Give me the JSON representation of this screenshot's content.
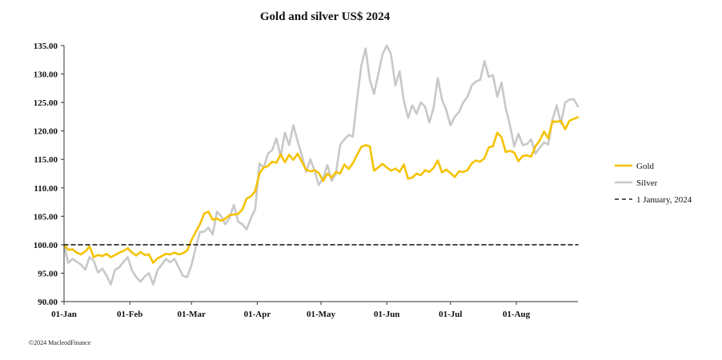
{
  "chart_data": {
    "type": "line",
    "title": "Gold and silver  US$ 2024",
    "ylim": [
      90,
      135
    ],
    "yticks": [
      "90.00",
      "95.00",
      "100.00",
      "105.00",
      "110.00",
      "115.00",
      "120.00",
      "125.00",
      "130.00",
      "135.00"
    ],
    "xtick_labels": [
      {
        "label": "01-Jan",
        "day": 0
      },
      {
        "label": "01-Feb",
        "day": 31
      },
      {
        "label": "01-Mar",
        "day": 60
      },
      {
        "label": "01-Apr",
        "day": 91
      },
      {
        "label": "01-May",
        "day": 121
      },
      {
        "label": "01-Jun",
        "day": 152
      },
      {
        "label": "01-Jul",
        "day": 182
      },
      {
        "label": "01-Aug",
        "day": 213
      }
    ],
    "x_end_day": 242,
    "legend_position": "right",
    "series": [
      {
        "name": "Gold",
        "color": "#f5c200",
        "points": [
          [
            0,
            100
          ],
          [
            2,
            99.1
          ],
          [
            4,
            99.2
          ],
          [
            6,
            98.6
          ],
          [
            8,
            98.3
          ],
          [
            10,
            98.8
          ],
          [
            12,
            99.7
          ],
          [
            14,
            97.8
          ],
          [
            16,
            98.2
          ],
          [
            18,
            98
          ],
          [
            20,
            98.4
          ],
          [
            22,
            97.8
          ],
          [
            24,
            98.2
          ],
          [
            26,
            98.6
          ],
          [
            28,
            98.9
          ],
          [
            30,
            99.4
          ],
          [
            32,
            98.6
          ],
          [
            34,
            98.1
          ],
          [
            36,
            98.7
          ],
          [
            38,
            98.2
          ],
          [
            40,
            98.3
          ],
          [
            42,
            96.8
          ],
          [
            44,
            97.6
          ],
          [
            46,
            98
          ],
          [
            48,
            98.4
          ],
          [
            50,
            98.3
          ],
          [
            52,
            98.6
          ],
          [
            54,
            98.3
          ],
          [
            56,
            98.5
          ],
          [
            58,
            99
          ],
          [
            60,
            100.8
          ],
          [
            62,
            102.2
          ],
          [
            64,
            103.6
          ],
          [
            66,
            105.5
          ],
          [
            68,
            105.8
          ],
          [
            70,
            104.4
          ],
          [
            72,
            104.6
          ],
          [
            74,
            104.2
          ],
          [
            76,
            104.6
          ],
          [
            78,
            105.2
          ],
          [
            80,
            105.3
          ],
          [
            82,
            105.4
          ],
          [
            84,
            106.2
          ],
          [
            86,
            108.1
          ],
          [
            88,
            108.5
          ],
          [
            90,
            109.4
          ],
          [
            92,
            112.5
          ],
          [
            94,
            113.6
          ],
          [
            96,
            113.8
          ],
          [
            98,
            114.6
          ],
          [
            100,
            114.4
          ],
          [
            102,
            115.9
          ],
          [
            104,
            114.5
          ],
          [
            106,
            115.8
          ],
          [
            108,
            114.9
          ],
          [
            110,
            116
          ],
          [
            112,
            114.6
          ],
          [
            114,
            113.2
          ],
          [
            116,
            112.9
          ],
          [
            118,
            113.1
          ],
          [
            120,
            112.6
          ],
          [
            122,
            111.2
          ],
          [
            124,
            112.5
          ],
          [
            126,
            111.8
          ],
          [
            128,
            112.8
          ],
          [
            130,
            112.5
          ],
          [
            132,
            114.1
          ],
          [
            134,
            113.3
          ],
          [
            136,
            114.3
          ],
          [
            138,
            115.8
          ],
          [
            140,
            117.2
          ],
          [
            142,
            117.5
          ],
          [
            144,
            117.3
          ],
          [
            146,
            113
          ],
          [
            148,
            113.6
          ],
          [
            150,
            114.2
          ],
          [
            152,
            113.6
          ],
          [
            154,
            113
          ],
          [
            156,
            113.4
          ],
          [
            158,
            112.8
          ],
          [
            160,
            114.1
          ],
          [
            162,
            111.6
          ],
          [
            164,
            111.8
          ],
          [
            166,
            112.5
          ],
          [
            168,
            112.2
          ],
          [
            170,
            113.1
          ],
          [
            172,
            112.8
          ],
          [
            174,
            113.5
          ],
          [
            176,
            114.8
          ],
          [
            178,
            112.7
          ],
          [
            180,
            113.2
          ],
          [
            182,
            112.6
          ],
          [
            184,
            111.9
          ],
          [
            186,
            112.9
          ],
          [
            188,
            112.8
          ],
          [
            190,
            113.1
          ],
          [
            192,
            114.3
          ],
          [
            194,
            114.8
          ],
          [
            196,
            114.6
          ],
          [
            198,
            115.2
          ],
          [
            200,
            117.1
          ],
          [
            202,
            117.3
          ],
          [
            204,
            119.7
          ],
          [
            206,
            118.9
          ],
          [
            208,
            116.3
          ],
          [
            210,
            116.5
          ],
          [
            212,
            116.2
          ],
          [
            214,
            114.7
          ],
          [
            216,
            115.6
          ],
          [
            218,
            115.7
          ],
          [
            220,
            115.5
          ],
          [
            222,
            117.3
          ],
          [
            224,
            118.3
          ],
          [
            226,
            119.9
          ],
          [
            228,
            118.7
          ],
          [
            230,
            121.7
          ],
          [
            232,
            121.6
          ],
          [
            234,
            121.8
          ],
          [
            236,
            120.3
          ],
          [
            238,
            121.8
          ],
          [
            240,
            122.1
          ],
          [
            242,
            122.4
          ]
        ]
      },
      {
        "name": "Silver",
        "color": "#c8c8c8",
        "points": [
          [
            0,
            100
          ],
          [
            2,
            96.8
          ],
          [
            4,
            97.5
          ],
          [
            6,
            97
          ],
          [
            8,
            96.5
          ],
          [
            10,
            95.6
          ],
          [
            12,
            97.8
          ],
          [
            14,
            97.2
          ],
          [
            16,
            95.1
          ],
          [
            18,
            95.8
          ],
          [
            20,
            94.6
          ],
          [
            22,
            93
          ],
          [
            24,
            95.6
          ],
          [
            26,
            96
          ],
          [
            28,
            97
          ],
          [
            30,
            97.8
          ],
          [
            32,
            95.5
          ],
          [
            34,
            94.3
          ],
          [
            36,
            93.5
          ],
          [
            38,
            94.4
          ],
          [
            40,
            95
          ],
          [
            42,
            93
          ],
          [
            44,
            95.5
          ],
          [
            46,
            96.5
          ],
          [
            48,
            97.5
          ],
          [
            50,
            96.9
          ],
          [
            52,
            97.5
          ],
          [
            54,
            96
          ],
          [
            56,
            94.5
          ],
          [
            58,
            94.3
          ],
          [
            60,
            96.4
          ],
          [
            62,
            99.5
          ],
          [
            64,
            102.2
          ],
          [
            66,
            102.3
          ],
          [
            68,
            103
          ],
          [
            70,
            101.8
          ],
          [
            72,
            105.8
          ],
          [
            74,
            105
          ],
          [
            76,
            103.6
          ],
          [
            78,
            104.8
          ],
          [
            80,
            107
          ],
          [
            82,
            104
          ],
          [
            84,
            103.6
          ],
          [
            86,
            102.7
          ],
          [
            88,
            104.7
          ],
          [
            90,
            106.2
          ],
          [
            92,
            114.3
          ],
          [
            94,
            113.5
          ],
          [
            96,
            116
          ],
          [
            98,
            116.6
          ],
          [
            100,
            118.7
          ],
          [
            102,
            115.5
          ],
          [
            104,
            119.7
          ],
          [
            106,
            117.5
          ],
          [
            108,
            121
          ],
          [
            110,
            118.2
          ],
          [
            112,
            115.7
          ],
          [
            114,
            112.8
          ],
          [
            116,
            115
          ],
          [
            118,
            113
          ],
          [
            120,
            110.5
          ],
          [
            122,
            111.7
          ],
          [
            124,
            114
          ],
          [
            126,
            111.2
          ],
          [
            128,
            112.5
          ],
          [
            130,
            117.5
          ],
          [
            132,
            118.5
          ],
          [
            134,
            119.3
          ],
          [
            136,
            119
          ],
          [
            138,
            125.5
          ],
          [
            140,
            131.5
          ],
          [
            142,
            134.5
          ],
          [
            144,
            129
          ],
          [
            146,
            126.5
          ],
          [
            148,
            130
          ],
          [
            150,
            133.5
          ],
          [
            152,
            135
          ],
          [
            154,
            133.5
          ],
          [
            156,
            128
          ],
          [
            158,
            130.5
          ],
          [
            160,
            125.3
          ],
          [
            162,
            122.3
          ],
          [
            164,
            124.5
          ],
          [
            166,
            123
          ],
          [
            168,
            125
          ],
          [
            170,
            124.3
          ],
          [
            172,
            121.5
          ],
          [
            174,
            124
          ],
          [
            176,
            129.3
          ],
          [
            178,
            125.5
          ],
          [
            180,
            123.7
          ],
          [
            182,
            121
          ],
          [
            184,
            122.5
          ],
          [
            186,
            123.3
          ],
          [
            188,
            125
          ],
          [
            190,
            126
          ],
          [
            192,
            128
          ],
          [
            194,
            128.7
          ],
          [
            196,
            129
          ],
          [
            198,
            132.3
          ],
          [
            200,
            129.5
          ],
          [
            202,
            129.8
          ],
          [
            204,
            126
          ],
          [
            206,
            128.5
          ],
          [
            208,
            124
          ],
          [
            210,
            121
          ],
          [
            212,
            117.3
          ],
          [
            214,
            119.5
          ],
          [
            216,
            117.5
          ],
          [
            218,
            117.7
          ],
          [
            220,
            118.5
          ],
          [
            222,
            116
          ],
          [
            224,
            117
          ],
          [
            226,
            118
          ],
          [
            228,
            117.6
          ],
          [
            230,
            122
          ],
          [
            232,
            124.5
          ],
          [
            234,
            121.3
          ],
          [
            236,
            125
          ],
          [
            238,
            125.5
          ],
          [
            240,
            125.6
          ],
          [
            242,
            124.3
          ]
        ]
      },
      {
        "name": "1 January, 2024",
        "color": "#222222",
        "dashed": true,
        "points": [
          [
            0,
            100
          ],
          [
            242,
            100
          ]
        ]
      }
    ]
  },
  "footer": {
    "copyright": "©2024 MacleodFinance"
  }
}
